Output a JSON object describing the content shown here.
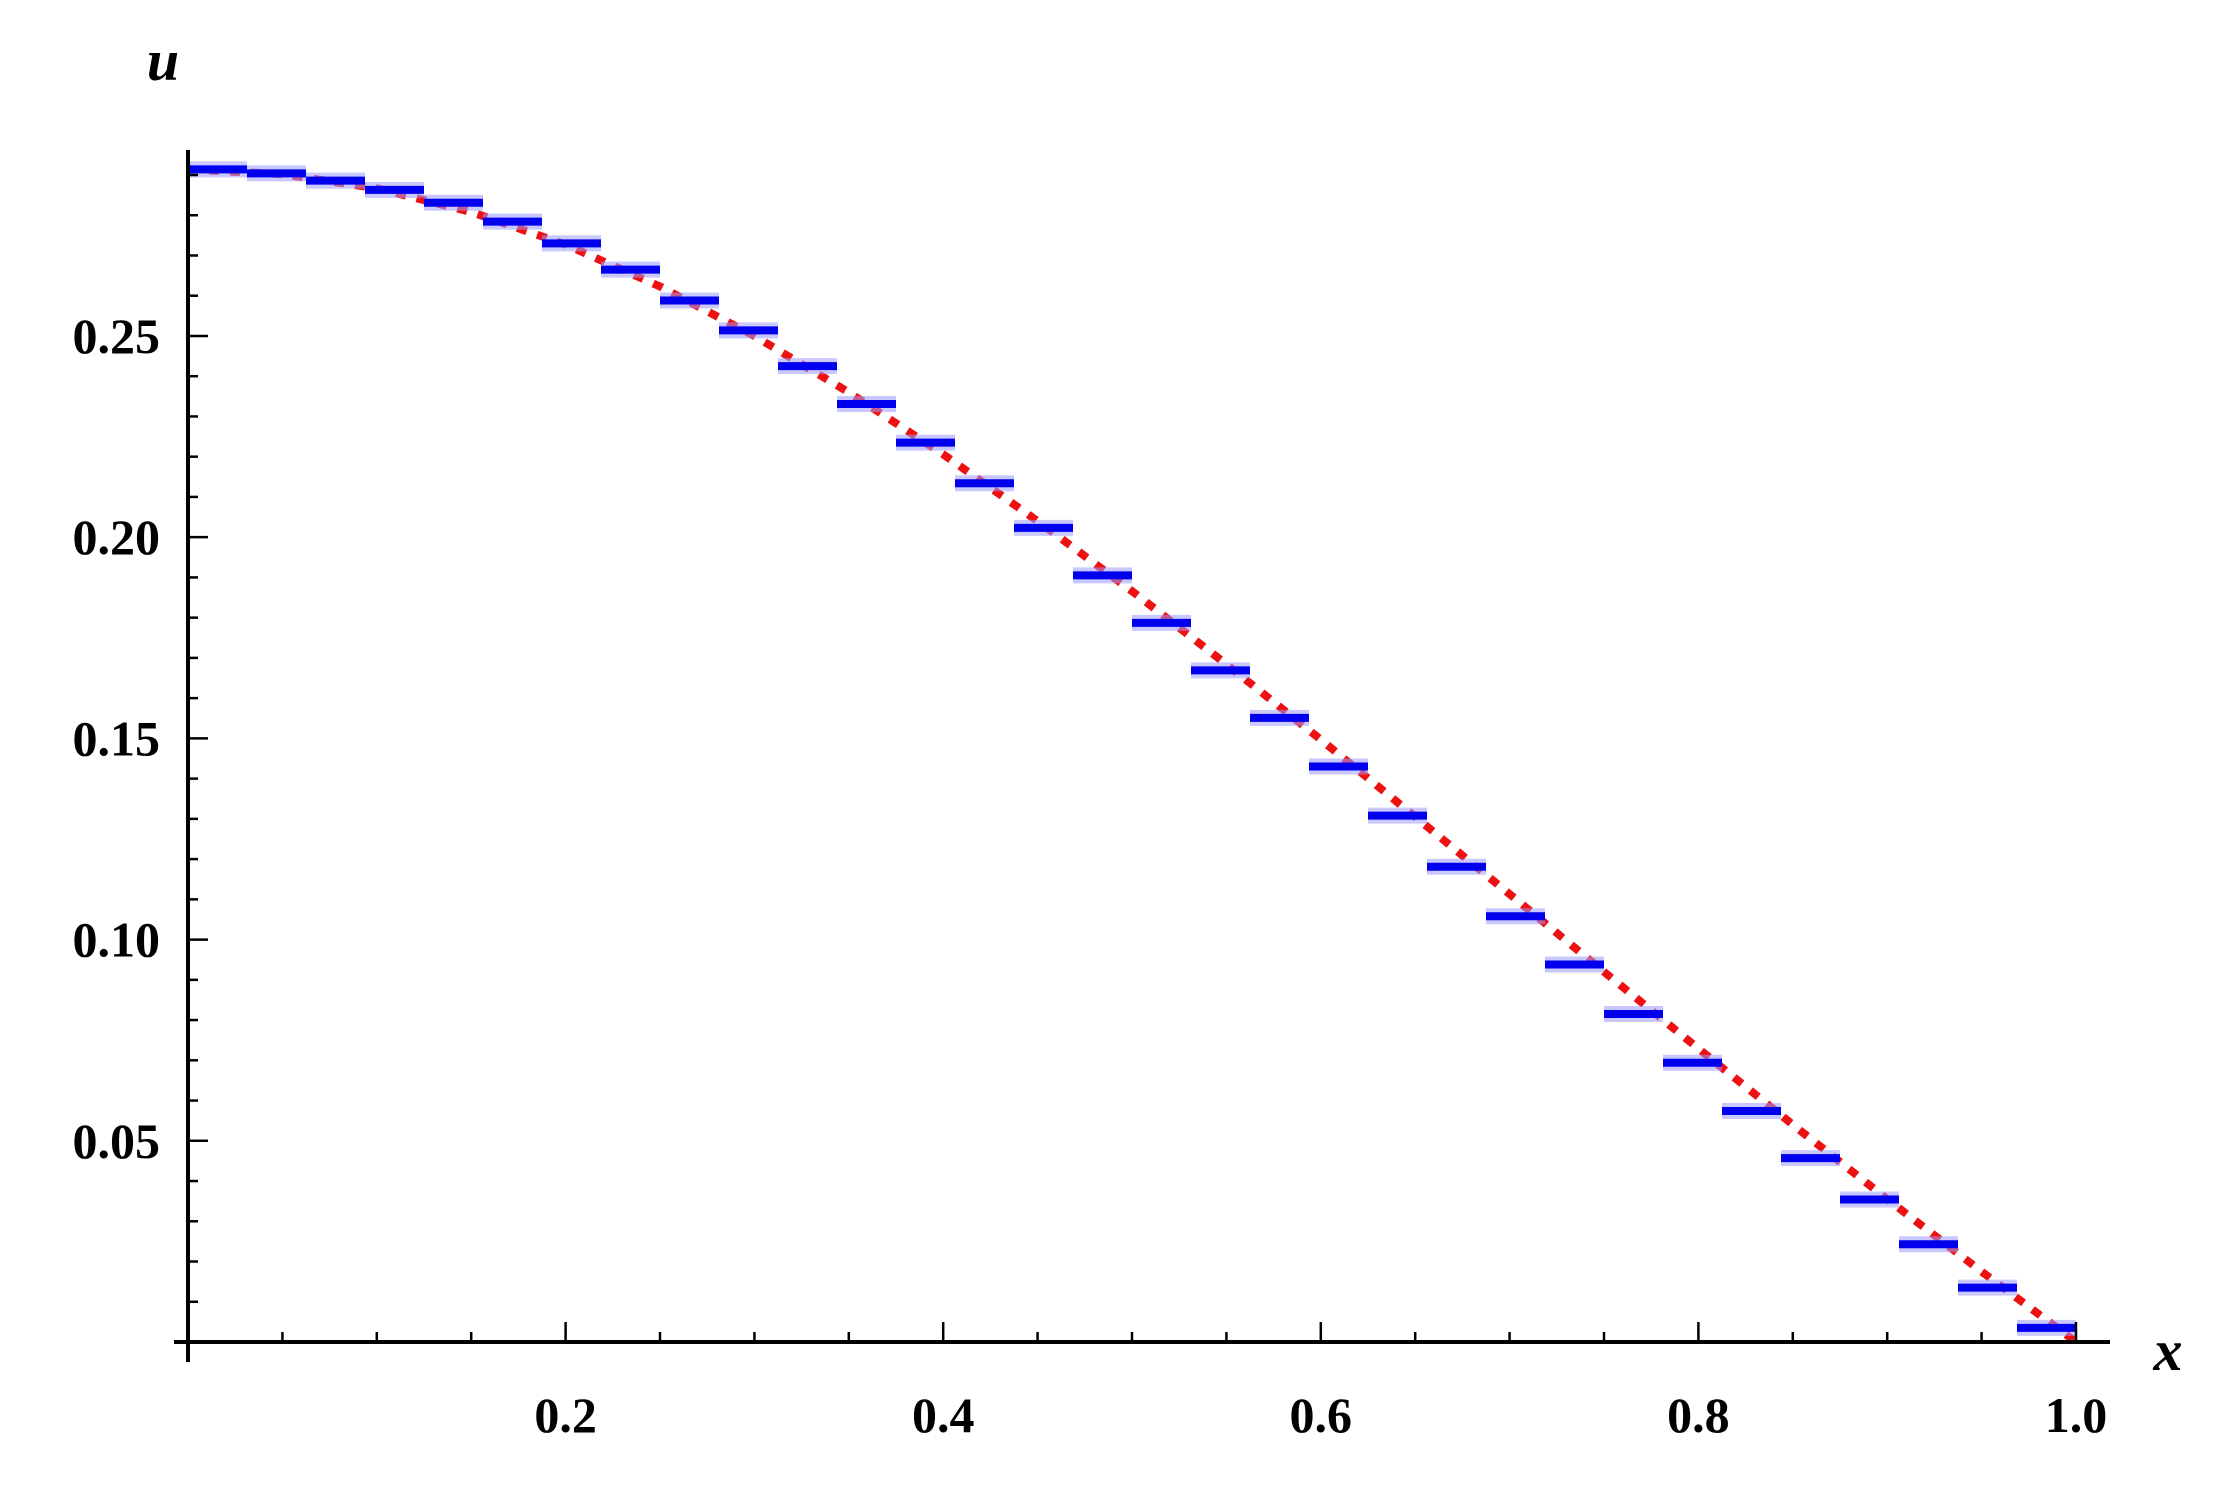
{
  "chart_data": {
    "type": "line",
    "xlabel": "x",
    "ylabel": "u",
    "xlim": [
      0,
      1.0
    ],
    "ylim": [
      0,
      0.29
    ],
    "x_ticks": [
      {
        "value": 0.2,
        "label": "0.2"
      },
      {
        "value": 0.4,
        "label": "0.4"
      },
      {
        "value": 0.6,
        "label": "0.6"
      },
      {
        "value": 0.8,
        "label": "0.8"
      },
      {
        "value": 1.0,
        "label": "1.0"
      }
    ],
    "y_ticks": [
      {
        "value": 0.05,
        "label": "0.05"
      },
      {
        "value": 0.1,
        "label": "0.10"
      },
      {
        "value": 0.15,
        "label": "0.15"
      },
      {
        "value": 0.2,
        "label": "0.20"
      },
      {
        "value": 0.25,
        "label": "0.25"
      }
    ],
    "grid": false,
    "series": [
      {
        "style": "step",
        "color": "#0000ee",
        "x": [
          0,
          0.03125,
          0.0625,
          0.09375,
          0.125,
          0.15625,
          0.1875,
          0.21875,
          0.25,
          0.28125,
          0.3125,
          0.34375,
          0.375,
          0.40625,
          0.4375,
          0.46875,
          0.5,
          0.53125,
          0.5625,
          0.59375,
          0.625,
          0.65625,
          0.6875,
          0.71875,
          0.75,
          0.78125,
          0.8125,
          0.84375,
          0.875,
          0.90625,
          0.9375,
          0.96875
        ],
        "values": [
          0.2914,
          0.2904,
          0.2886,
          0.2863,
          0.2831,
          0.2784,
          0.273,
          0.2665,
          0.2588,
          0.2514,
          0.2425,
          0.2331,
          0.2235,
          0.2134,
          0.2023,
          0.1905,
          0.1787,
          0.1669,
          0.1551,
          0.143,
          0.1308,
          0.1181,
          0.1058,
          0.0938,
          0.0815,
          0.0694,
          0.0574,
          0.0457,
          0.0354,
          0.0243,
          0.0135,
          0.0035
        ]
      },
      {
        "style": "dashed",
        "color": "#ee1111",
        "x": [
          0,
          0.05,
          0.1,
          0.15,
          0.2,
          0.25,
          0.3,
          0.35,
          0.4,
          0.45,
          0.5,
          0.55,
          0.6,
          0.65,
          0.7,
          0.75,
          0.8,
          0.85,
          0.9,
          0.95,
          1.0
        ],
        "values": [
          0.2914,
          0.2902,
          0.2867,
          0.2808,
          0.2727,
          0.2623,
          0.25,
          0.236,
          0.2206,
          0.204,
          0.1866,
          0.1684,
          0.1497,
          0.1305,
          0.1113,
          0.092,
          0.0729,
          0.054,
          0.0355,
          0.0175,
          0.0
        ]
      }
    ]
  }
}
